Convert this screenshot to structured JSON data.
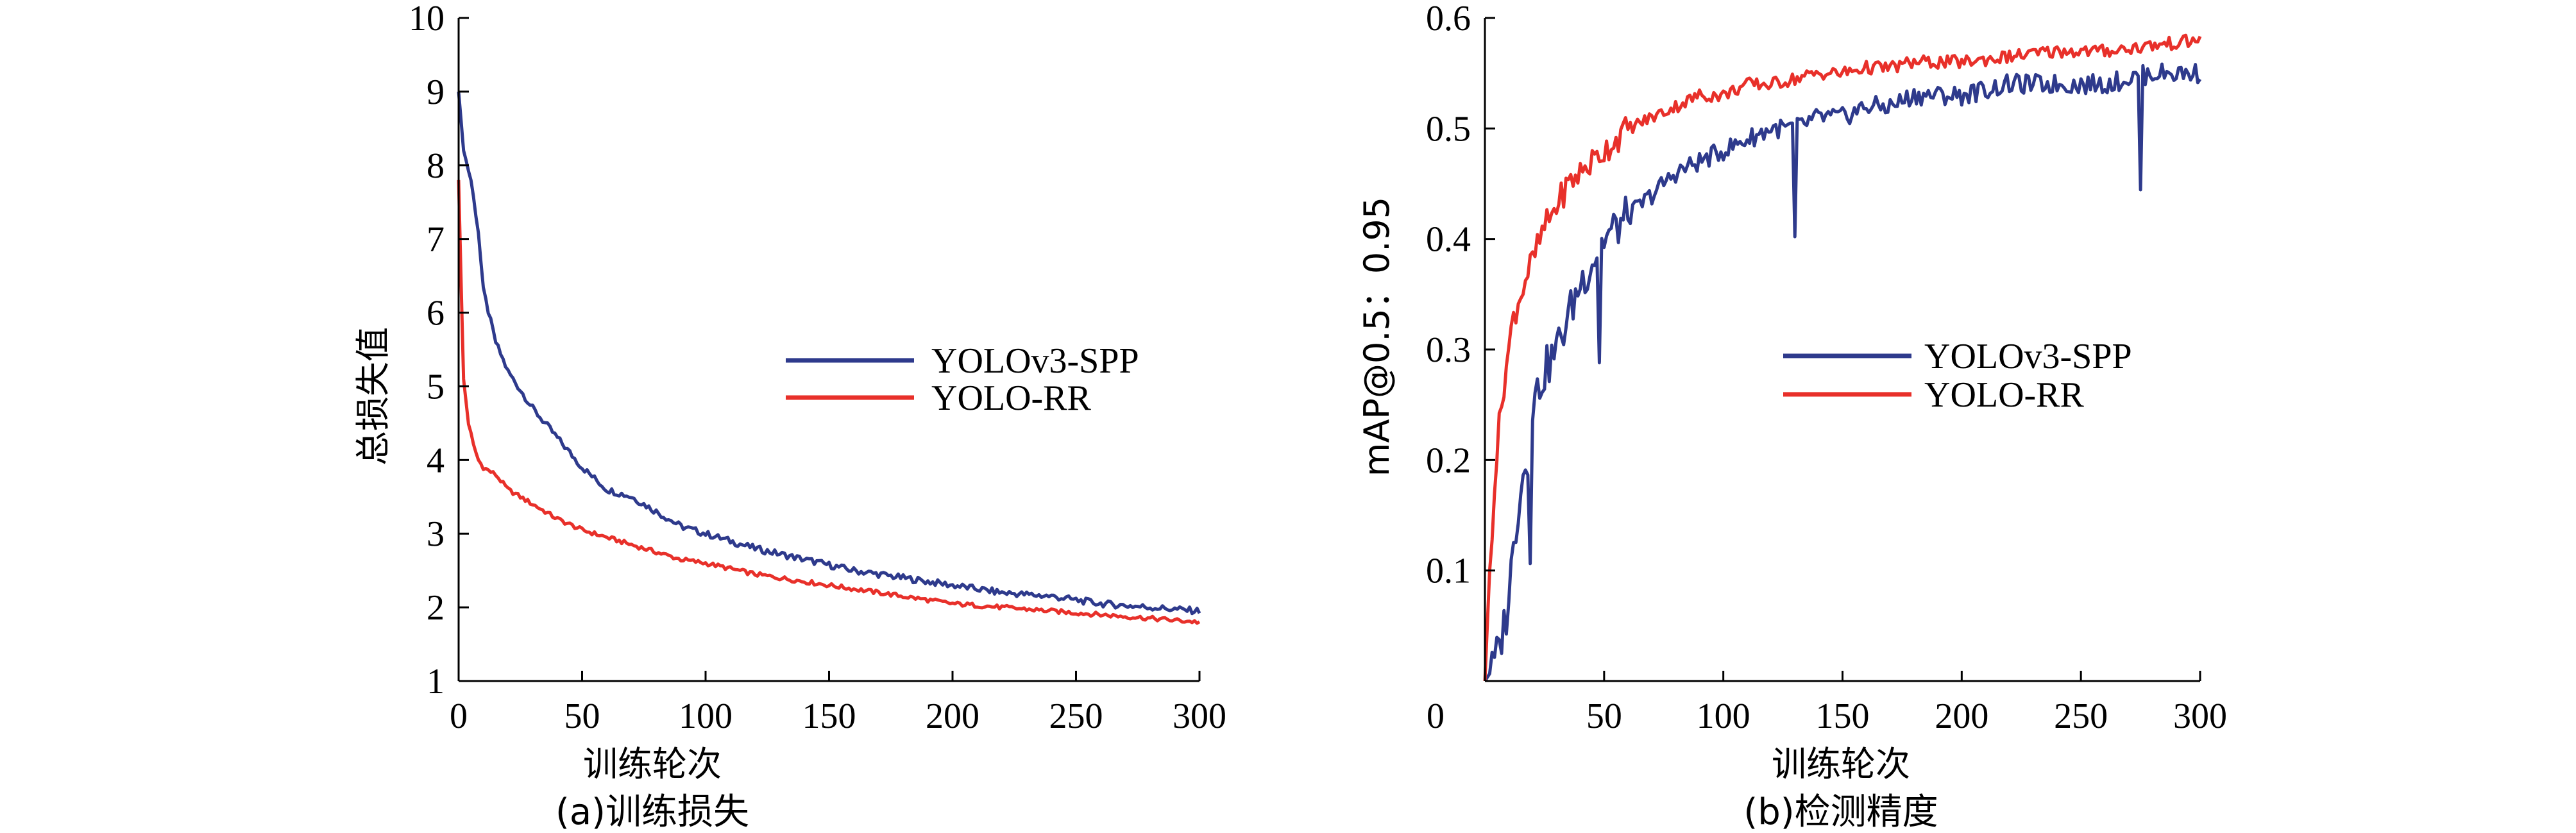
{
  "colors": {
    "series1": "#2e3a8c",
    "series2": "#e8302a",
    "axis": "#000000"
  },
  "chart_data": [
    {
      "type": "line",
      "caption": "(a)训练损失",
      "xlabel": "训练轮次",
      "ylabel": "总损失值",
      "xlim": [
        0,
        300
      ],
      "ylim": [
        1,
        10
      ],
      "xticks": [
        "0",
        "50",
        "100",
        "150",
        "200",
        "250",
        "300"
      ],
      "yticks": [
        "1",
        "2",
        "3",
        "4",
        "5",
        "6",
        "7",
        "8",
        "9",
        "10"
      ],
      "legend_position": "center-right",
      "series": [
        {
          "name": "YOLOv3-SPP",
          "x": [
            0,
            2,
            5,
            8,
            10,
            15,
            20,
            30,
            40,
            50,
            60,
            70,
            80,
            90,
            100,
            120,
            140,
            160,
            180,
            200,
            220,
            240,
            260,
            280,
            300
          ],
          "y": [
            9.0,
            8.2,
            7.8,
            7.1,
            6.3,
            5.6,
            5.2,
            4.7,
            4.3,
            3.9,
            3.6,
            3.5,
            3.3,
            3.1,
            3.0,
            2.8,
            2.65,
            2.5,
            2.4,
            2.3,
            2.2,
            2.15,
            2.05,
            2.0,
            1.95
          ]
        },
        {
          "name": "YOLO-RR",
          "x": [
            0,
            1,
            2,
            4,
            6,
            8,
            10,
            15,
            20,
            30,
            40,
            50,
            60,
            70,
            80,
            90,
            100,
            120,
            140,
            160,
            180,
            200,
            220,
            240,
            260,
            280,
            300
          ],
          "y": [
            7.8,
            6.4,
            5.1,
            4.5,
            4.2,
            4.0,
            3.9,
            3.8,
            3.6,
            3.4,
            3.2,
            3.05,
            2.95,
            2.85,
            2.75,
            2.65,
            2.6,
            2.45,
            2.35,
            2.25,
            2.15,
            2.05,
            2.0,
            1.95,
            1.9,
            1.85,
            1.8
          ]
        }
      ]
    },
    {
      "type": "line",
      "caption": "(b)检测精度",
      "xlabel": "训练轮次",
      "ylabel": "mAP@0.5：0.95",
      "xlim": [
        0,
        300
      ],
      "ylim": [
        0,
        0.6
      ],
      "xticks": [
        "0",
        "50",
        "100",
        "150",
        "200",
        "250",
        "300"
      ],
      "yticks": [
        "0.1",
        "0.2",
        "0.3",
        "0.4",
        "0.5",
        "0.6"
      ],
      "legend_position": "center-right",
      "series": [
        {
          "name": "YOLOv3-SPP",
          "x": [
            0,
            3,
            6,
            9,
            12,
            15,
            18,
            20,
            25,
            30,
            35,
            40,
            45,
            50,
            60,
            70,
            80,
            90,
            100,
            110,
            120,
            130,
            140,
            150,
            160,
            170,
            180,
            190,
            200,
            220,
            240,
            260,
            280,
            300
          ],
          "y": [
            0.0,
            0.01,
            0.03,
            0.06,
            0.12,
            0.18,
            0.2,
            0.25,
            0.28,
            0.3,
            0.33,
            0.36,
            0.38,
            0.4,
            0.42,
            0.44,
            0.46,
            0.47,
            0.48,
            0.49,
            0.5,
            0.5,
            0.51,
            0.51,
            0.52,
            0.52,
            0.53,
            0.53,
            0.53,
            0.54,
            0.54,
            0.54,
            0.55,
            0.55
          ]
        },
        {
          "name": "YOLO-RR",
          "x": [
            0,
            2,
            4,
            6,
            8,
            10,
            12,
            15,
            18,
            20,
            25,
            30,
            35,
            40,
            45,
            50,
            60,
            70,
            80,
            90,
            100,
            110,
            120,
            130,
            140,
            150,
            160,
            170,
            180,
            190,
            200,
            220,
            240,
            260,
            280,
            300
          ],
          "y": [
            0.0,
            0.1,
            0.18,
            0.23,
            0.27,
            0.3,
            0.33,
            0.35,
            0.37,
            0.38,
            0.41,
            0.43,
            0.45,
            0.46,
            0.47,
            0.48,
            0.5,
            0.51,
            0.52,
            0.53,
            0.53,
            0.54,
            0.54,
            0.545,
            0.55,
            0.55,
            0.555,
            0.555,
            0.56,
            0.56,
            0.56,
            0.565,
            0.57,
            0.57,
            0.575,
            0.58
          ]
        }
      ]
    }
  ]
}
